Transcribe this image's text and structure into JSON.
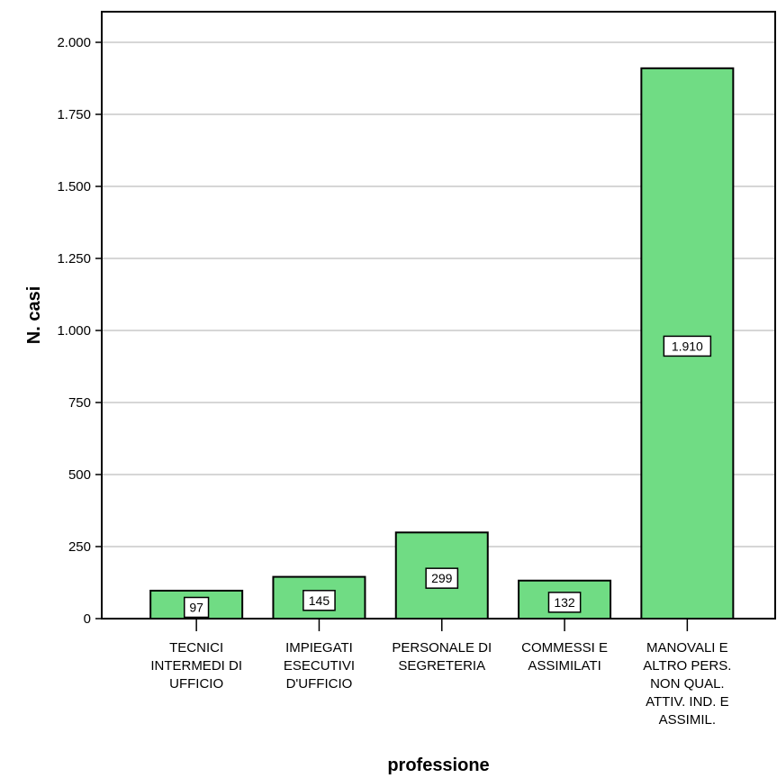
{
  "chart_data": {
    "type": "bar",
    "xlabel": "professione",
    "ylabel": "N. casi",
    "ylim": [
      0,
      2100
    ],
    "yticks": [
      0,
      250,
      500,
      750,
      1000,
      1250,
      1500,
      1750,
      2000
    ],
    "ytick_labels": [
      "0",
      "250",
      "500",
      "750",
      "1.000",
      "1.250",
      "1.500",
      "1.750",
      "2.000"
    ],
    "grid": true,
    "bar_color": "#70dc84",
    "categories": [
      [
        "TECNICI",
        "INTERMEDI DI",
        "UFFICIO"
      ],
      [
        "IMPIEGATI",
        "ESECUTIVI",
        "D'UFFICIO"
      ],
      [
        "PERSONALE DI",
        "SEGRETERIA"
      ],
      [
        "COMMESSI E",
        "ASSIMILATI"
      ],
      [
        "MANOVALI E",
        "ALTRO PERS.",
        "NON QUAL.",
        "ATTIV. IND. E",
        "ASSIMIL."
      ]
    ],
    "values": [
      97,
      145,
      299,
      132,
      1910
    ],
    "value_labels": [
      "97",
      "145",
      "299",
      "132",
      "1.910"
    ]
  }
}
